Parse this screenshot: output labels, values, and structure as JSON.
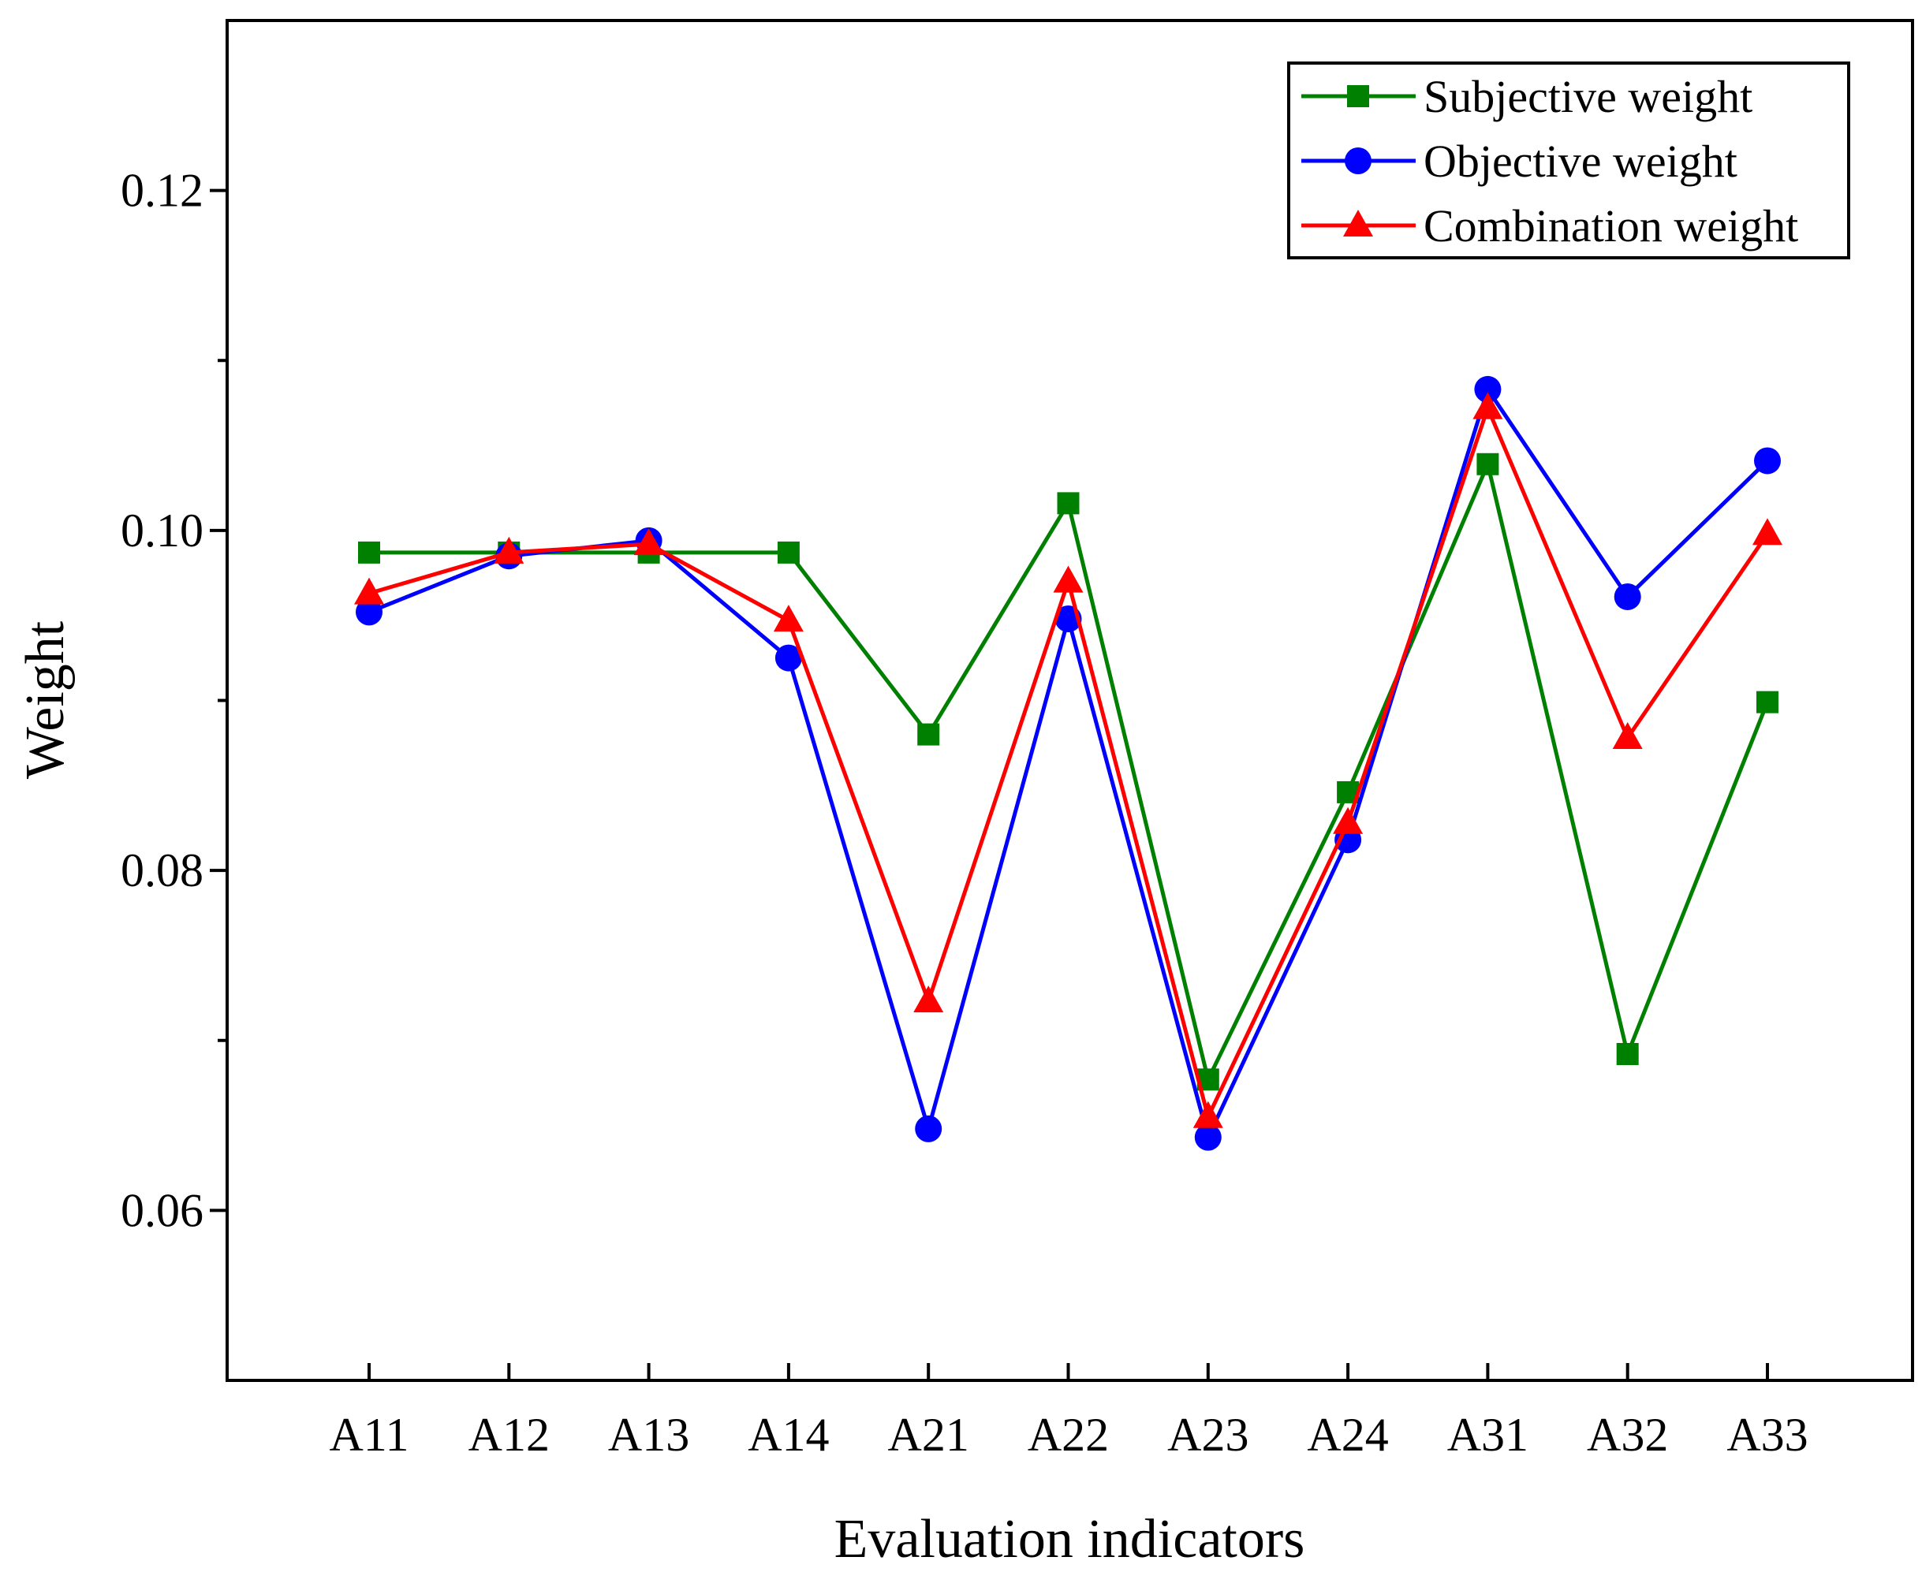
{
  "chart_data": {
    "type": "line",
    "title": "",
    "xlabel": "Evaluation indicators",
    "ylabel": "Weight",
    "categories": [
      "A11",
      "A12",
      "A13",
      "A14",
      "A21",
      "A22",
      "A23",
      "A24",
      "A31",
      "A32",
      "A33"
    ],
    "ylim": [
      0.05,
      0.13
    ],
    "yticks": [
      0.06,
      0.08,
      0.1,
      0.12
    ],
    "ytick_labels": [
      "0.06",
      "0.08",
      "0.10",
      "0.12"
    ],
    "grid": false,
    "legend_position": "top-right",
    "series": [
      {
        "name": "Subjective weight",
        "color": "#008000",
        "marker": "square",
        "values": [
          0.0987,
          0.0987,
          0.0987,
          0.0987,
          0.088,
          0.1016,
          0.0677,
          0.0846,
          0.1039,
          0.0692,
          0.0899
        ]
      },
      {
        "name": "Objective weight",
        "color": "#0000ff",
        "marker": "circle",
        "values": [
          0.0952,
          0.0985,
          0.0994,
          0.0925,
          0.0648,
          0.0948,
          0.0643,
          0.0818,
          0.1083,
          0.0961,
          0.1041
        ]
      },
      {
        "name": "Combination weight",
        "color": "#ff0000",
        "marker": "triangle",
        "values": [
          0.0963,
          0.0987,
          0.0992,
          0.0947,
          0.0723,
          0.097,
          0.0655,
          0.0828,
          0.1072,
          0.0878,
          0.0998
        ]
      }
    ]
  }
}
